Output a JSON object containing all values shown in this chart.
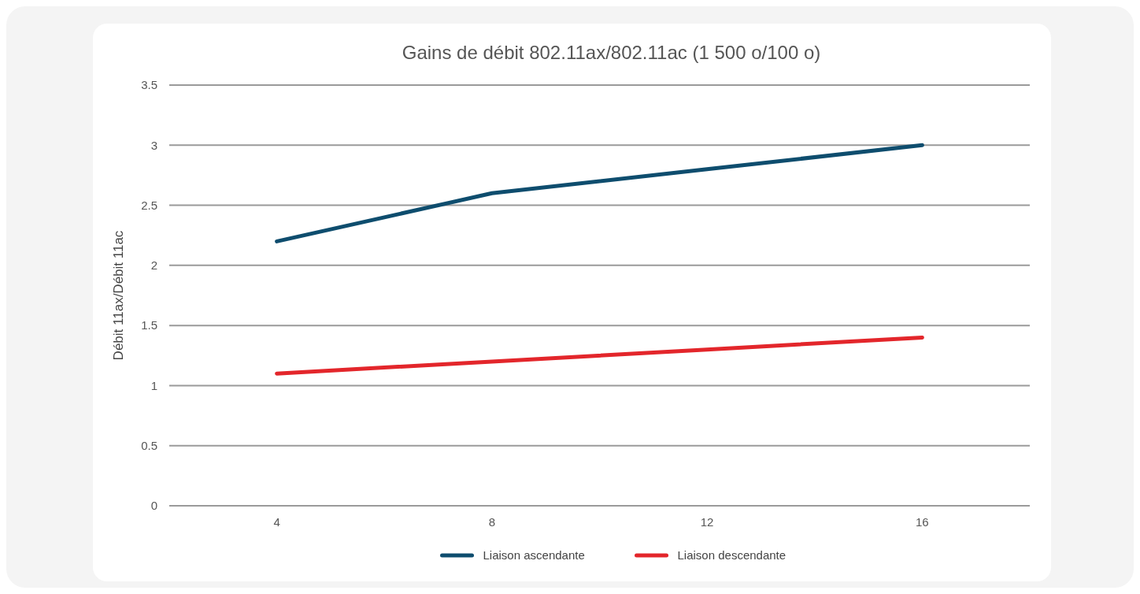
{
  "chart_data": {
    "type": "line",
    "title": "Gains de débit 802.11ax/802.11ac (1 500 o/100 o)",
    "ylabel": "Débit 11ax/Débit 11ac",
    "categories": [
      "4",
      "8",
      "12",
      "16"
    ],
    "series": [
      {
        "name": "Liaison ascendante",
        "color": "#0e4d6e",
        "values": [
          2.2,
          2.6,
          2.8,
          3.0
        ]
      },
      {
        "name": "Liaison descendante",
        "color": "#e3262b",
        "values": [
          1.1,
          1.2,
          1.3,
          1.4
        ]
      }
    ],
    "ylim": [
      0,
      3.5
    ],
    "yticks": [
      0,
      {
        "value": 0.5,
        "label": "0.5"
      },
      1,
      {
        "value": 1.5,
        "label": "1.5"
      },
      2,
      {
        "value": 2.5,
        "label": "2.5"
      },
      3,
      {
        "value": 3.5,
        "label": "3.5"
      }
    ],
    "grid": "y",
    "legend": "bottom",
    "marker": "none",
    "line_style": "solid"
  }
}
